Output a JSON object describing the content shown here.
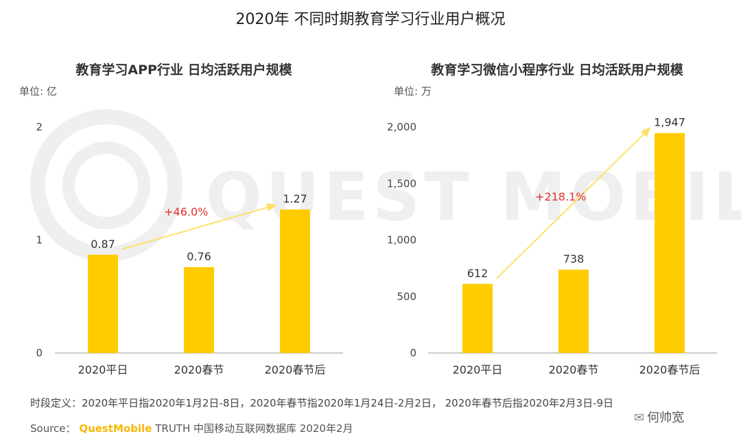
{
  "title": "2020年 不同时期教育学习行业用户概况",
  "colors": {
    "bar": "#FFCC00",
    "arrow": "#FFE066",
    "growth": "#E03030",
    "axis": "#999999"
  },
  "chart_data": [
    {
      "type": "bar",
      "title": "教育学习APP行业 日均活跃用户规模",
      "unit": "单位: 亿",
      "categories": [
        "2020平日",
        "2020春节",
        "2020春节后"
      ],
      "values": [
        0.87,
        0.76,
        1.27
      ],
      "value_labels": [
        "0.87",
        "0.76",
        "1.27"
      ],
      "yticks": [
        "0",
        "1",
        "2"
      ],
      "ylim": [
        0,
        2
      ],
      "growth": {
        "label": "+46.0%",
        "from": "2020平日",
        "to": "2020春节后"
      }
    },
    {
      "type": "bar",
      "title": "教育学习微信小程序行业 日均活跃用户规模",
      "unit": "单位: 万",
      "categories": [
        "2020平日",
        "2020春节",
        "2020春节后"
      ],
      "values": [
        612,
        738,
        1947
      ],
      "value_labels": [
        "612",
        "738",
        "1,947"
      ],
      "yticks": [
        "0",
        "500",
        "1,000",
        "1,500",
        "2,000"
      ],
      "ylim": [
        0,
        2000
      ],
      "growth": {
        "label": "+218.1%",
        "from": "2020平日",
        "to": "2020春节后"
      }
    }
  ],
  "watermark": "QUEST MOBILE",
  "footer": {
    "definition": "时段定义：2020年平日指2020年1月2日-8日，2020年春节指2020年1月24日-2月2日， 2020年春节后指2020年2月3日-9日",
    "source_prefix": "Source：",
    "source_brand": "QuestMobile",
    "source_rest": " TRUTH 中国移动互联网数据库 2020年2月"
  },
  "account": "何帅宽"
}
